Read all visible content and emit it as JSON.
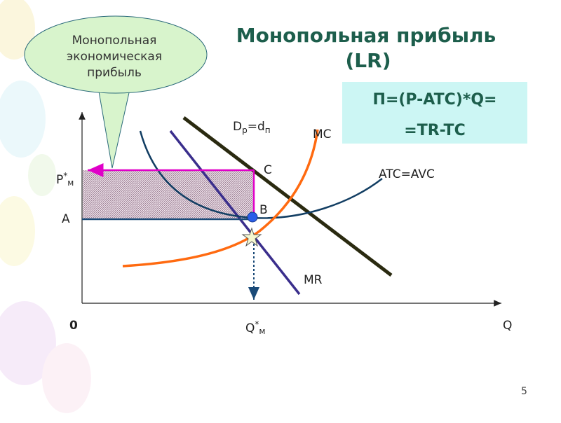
{
  "title": {
    "line1": "Монопольная прибыль",
    "line2": "(LR)"
  },
  "callout": {
    "line1": "Монопольная",
    "line2": "экономическая",
    "line3": "прибыль"
  },
  "formula": {
    "line1": "П=(P-ATC)*Q=",
    "line2": "=TR-TC"
  },
  "labels": {
    "demand": {
      "main": "D",
      "main_sub": "р",
      "rest": "=d",
      "rest_sub": "п"
    },
    "mc": "MC",
    "atc": "ATC=AVC",
    "mr": "MR",
    "point_c": "C",
    "point_b": "B",
    "point_a": "A",
    "price": {
      "main": "P",
      "sup": "*",
      "sub": "м"
    },
    "quantity": {
      "main": "Q",
      "sup": "*",
      "sub": "м"
    },
    "origin": "0",
    "x_axis": "Q"
  },
  "page_number": "5"
}
